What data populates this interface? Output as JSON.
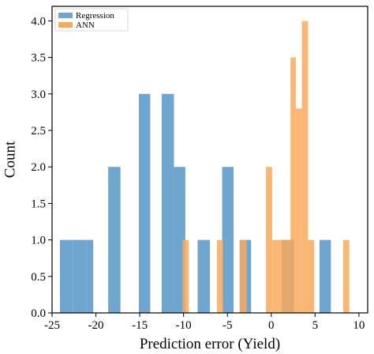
{
  "chart_data": {
    "type": "bar",
    "subtype": "histogram",
    "title": "",
    "xlabel": "Prediction error (Yield)",
    "ylabel": "Count",
    "xlim": [
      -25,
      11
    ],
    "ylim": [
      0,
      4.2
    ],
    "xticks": [
      "-25",
      "-20",
      "-15",
      "-10",
      "-5",
      "0",
      "5",
      "10"
    ],
    "xtick_values": [
      -25,
      -20,
      -15,
      -10,
      -5,
      0,
      5,
      10
    ],
    "yticks": [
      "0.0",
      "0.5",
      "1.0",
      "1.5",
      "2.0",
      "2.5",
      "3.0",
      "3.5",
      "4.0"
    ],
    "ytick_values": [
      0,
      0.5,
      1,
      1.5,
      2,
      2.5,
      3,
      3.5,
      4
    ],
    "grid": false,
    "legend_position": "top-left",
    "series": [
      {
        "name": "Regression",
        "color": "#6fa6d0",
        "bins": [
          {
            "x0": -24.1,
            "x1": -22.6,
            "value": 1
          },
          {
            "x0": -22.6,
            "x1": -21.1,
            "value": 1
          },
          {
            "x0": -21.1,
            "x1": -20.3,
            "value": 1
          },
          {
            "x0": -18.6,
            "x1": -17.2,
            "value": 2
          },
          {
            "x0": -15.1,
            "x1": -13.8,
            "value": 3
          },
          {
            "x0": -12.5,
            "x1": -11.1,
            "value": 3
          },
          {
            "x0": -11.1,
            "x1": -9.8,
            "value": 2
          },
          {
            "x0": -8.4,
            "x1": -7.0,
            "value": 1
          },
          {
            "x0": -5.6,
            "x1": -4.3,
            "value": 2
          },
          {
            "x0": -3.6,
            "x1": -2.3,
            "value": 1
          },
          {
            "x0": 1.2,
            "x1": 2.6,
            "value": 1
          },
          {
            "x0": 5.5,
            "x1": 6.8,
            "value": 1
          }
        ]
      },
      {
        "name": "ANN",
        "color": "#f9a95a",
        "bins": [
          {
            "x0": -10.1,
            "x1": -9.4,
            "value": 1
          },
          {
            "x0": -6.2,
            "x1": -5.5,
            "value": 1
          },
          {
            "x0": -3.6,
            "x1": -2.8,
            "value": 1
          },
          {
            "x0": -0.6,
            "x1": 0.1,
            "value": 2
          },
          {
            "x0": 0.1,
            "x1": 0.8,
            "value": 1
          },
          {
            "x0": 0.8,
            "x1": 1.5,
            "value": 1
          },
          {
            "x0": 1.5,
            "x1": 2.2,
            "value": 1
          },
          {
            "x0": 2.2,
            "x1": 2.8,
            "value": 3.5
          },
          {
            "x0": 2.8,
            "x1": 3.5,
            "value": 2.8
          },
          {
            "x0": 3.5,
            "x1": 4.2,
            "value": 4
          },
          {
            "x0": 4.2,
            "x1": 4.9,
            "value": 1
          },
          {
            "x0": 8.2,
            "x1": 8.9,
            "value": 1
          }
        ]
      }
    ]
  }
}
